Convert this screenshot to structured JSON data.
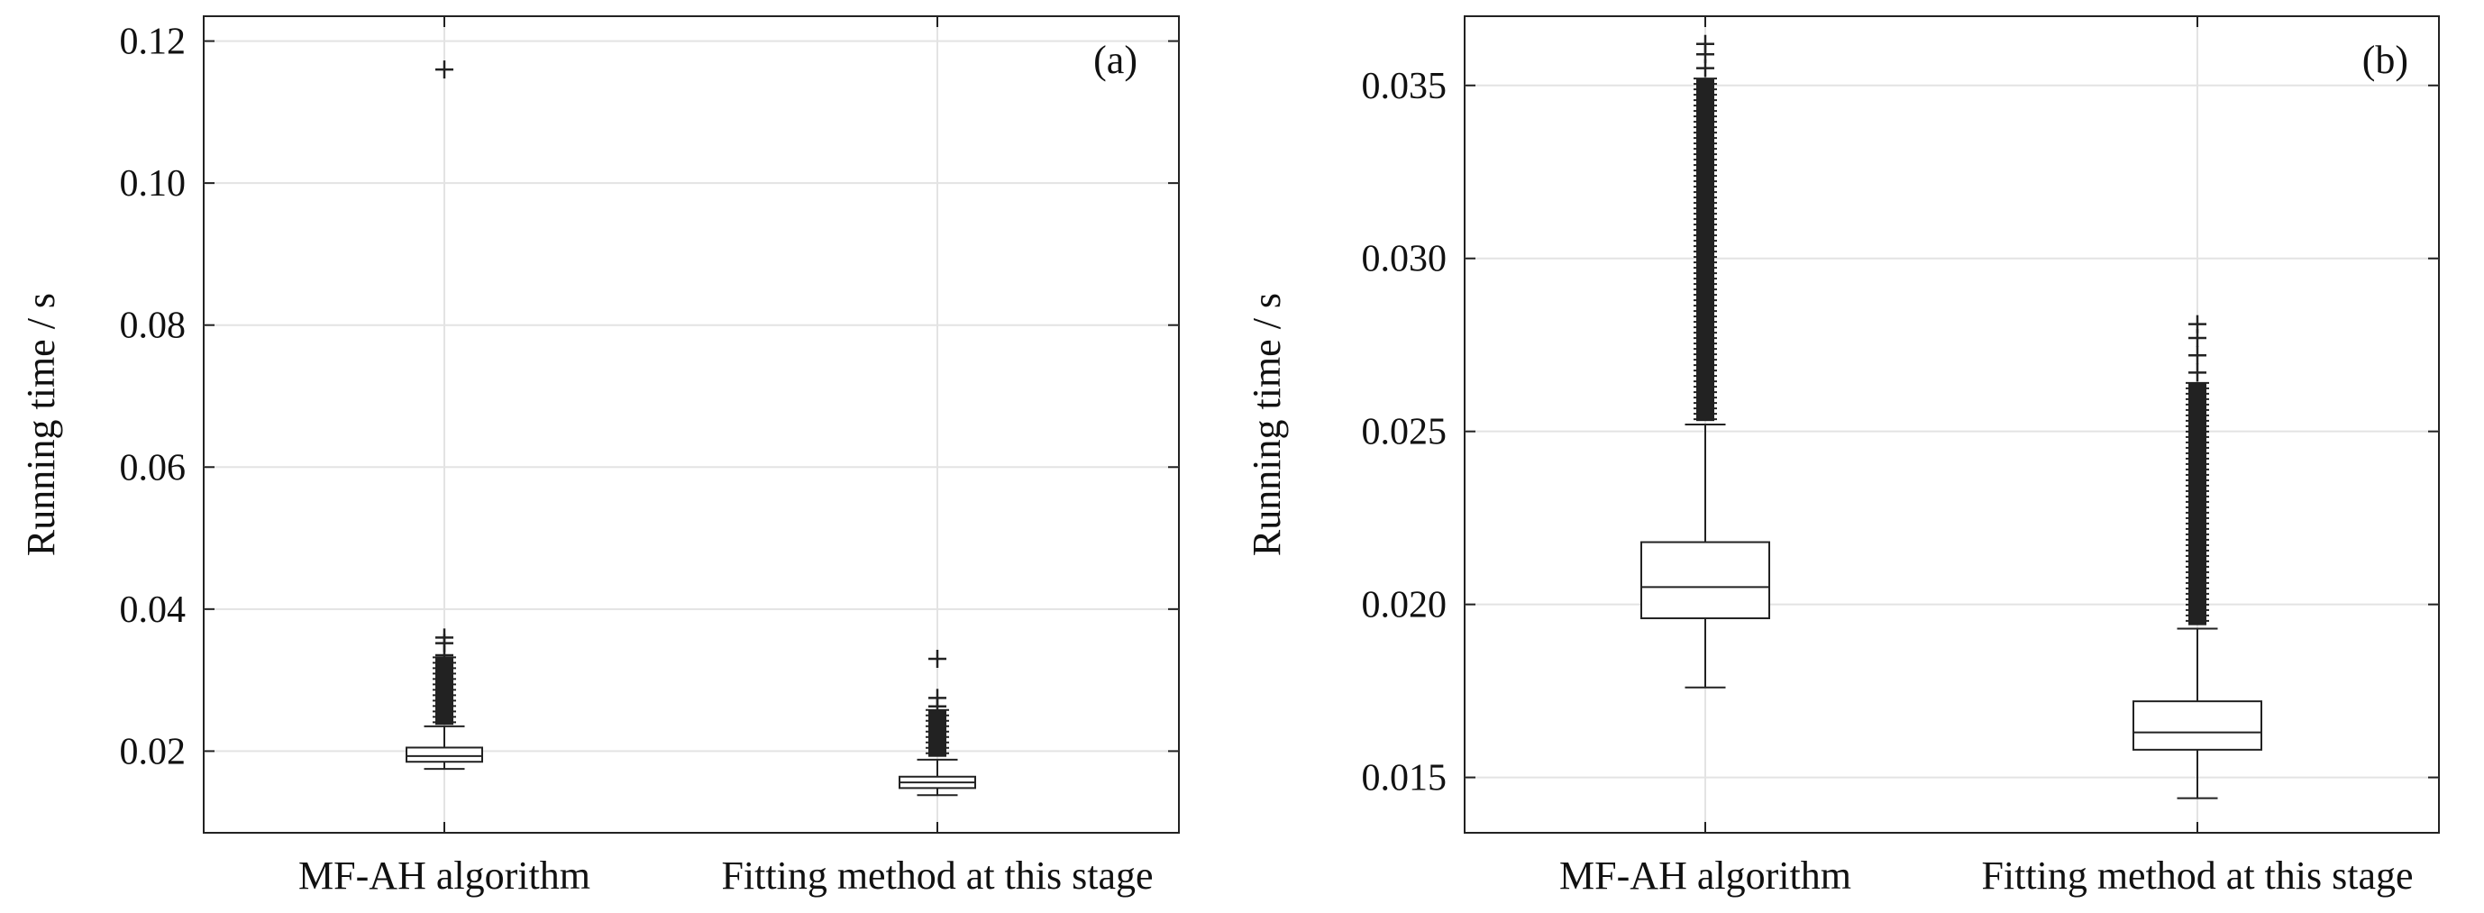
{
  "chart_data": [
    {
      "type": "box",
      "panel_label": "(a)",
      "ylabel": "Running time / s",
      "ylim": [
        0.0085,
        0.1235
      ],
      "yticks": [
        0.02,
        0.04,
        0.06,
        0.08,
        0.1,
        0.12
      ],
      "ytick_labels": [
        "0.02",
        "0.04",
        "0.06",
        "0.08",
        "0.10",
        "0.12"
      ],
      "categories": [
        "MF-AH algorithm",
        "Fitting method at this stage"
      ],
      "grid": true,
      "boxes": [
        {
          "category": "MF-AH algorithm",
          "lower_whisker": 0.0175,
          "q1": 0.0185,
          "median": 0.0193,
          "q3": 0.0205,
          "upper_whisker": 0.0235,
          "outlier_band": [
            0.0237,
            0.0332
          ],
          "outliers": [
            0.0335,
            0.0352,
            0.036,
            0.116
          ]
        },
        {
          "category": "Fitting method at this stage",
          "lower_whisker": 0.0138,
          "q1": 0.0148,
          "median": 0.0156,
          "q3": 0.0164,
          "upper_whisker": 0.0188,
          "outlier_band": [
            0.0192,
            0.0258
          ],
          "outliers": [
            0.0263,
            0.0275,
            0.033
          ]
        }
      ]
    },
    {
      "type": "box",
      "panel_label": "(b)",
      "ylabel": "Running time / s",
      "ylim": [
        0.0134,
        0.037
      ],
      "yticks": [
        0.015,
        0.02,
        0.025,
        0.03,
        0.035
      ],
      "ytick_labels": [
        "0.015",
        "0.020",
        "0.025",
        "0.030",
        "0.035"
      ],
      "categories": [
        "MF-AH algorithm",
        "Fitting method at this stage"
      ],
      "grid": true,
      "boxes": [
        {
          "category": "MF-AH algorithm",
          "lower_whisker": 0.0176,
          "q1": 0.0196,
          "median": 0.0205,
          "q3": 0.0218,
          "upper_whisker": 0.0252,
          "outlier_band": [
            0.0253,
            0.0352
          ],
          "outliers": [
            0.0355,
            0.0359,
            0.0362
          ]
        },
        {
          "category": "Fitting method at this stage",
          "lower_whisker": 0.0144,
          "q1": 0.0158,
          "median": 0.0163,
          "q3": 0.0172,
          "upper_whisker": 0.0193,
          "outlier_band": [
            0.0194,
            0.0264
          ],
          "outliers": [
            0.0267,
            0.0272,
            0.0277,
            0.0281
          ]
        }
      ]
    }
  ]
}
